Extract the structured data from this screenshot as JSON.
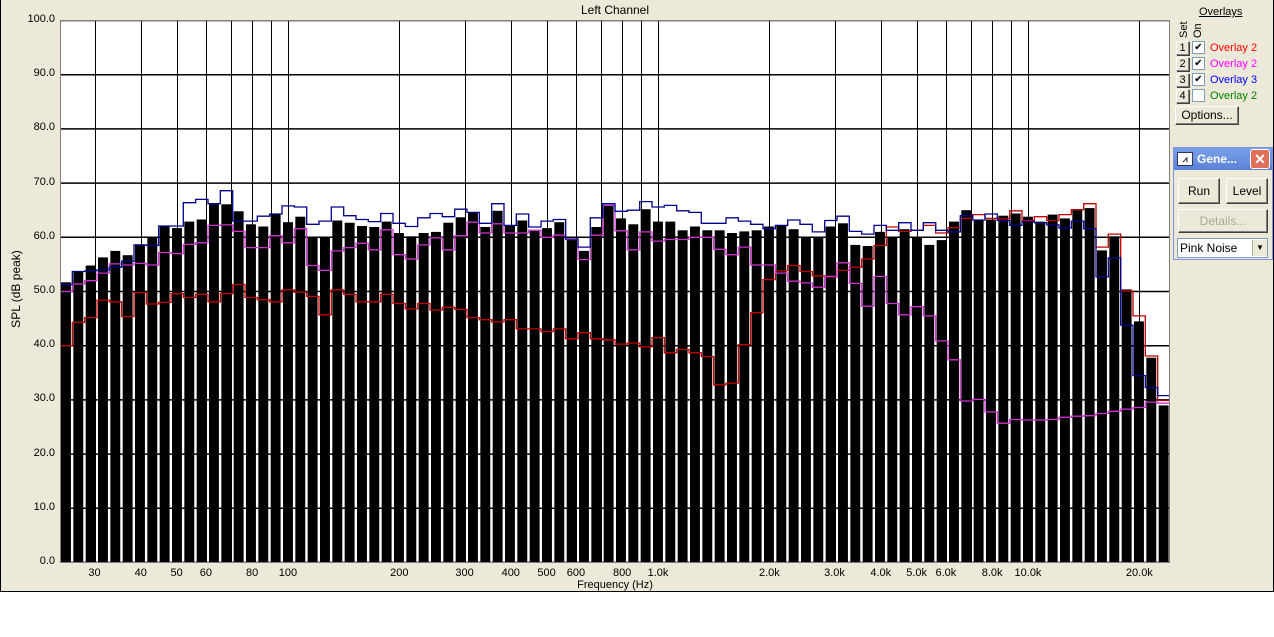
{
  "window": {
    "title": "Left Channel"
  },
  "overlays_panel": {
    "header": "Overlays",
    "col_set": "Set",
    "col_on": "On",
    "rows": [
      {
        "set": "1",
        "checked": true,
        "label": "Overlay 2",
        "color": "#ff0000"
      },
      {
        "set": "2",
        "checked": true,
        "label": "Overlay 2",
        "color": "#ff00ff"
      },
      {
        "set": "3",
        "checked": true,
        "label": "Overlay 3",
        "color": "#0000ff"
      },
      {
        "set": "4",
        "checked": false,
        "label": "Overlay 2",
        "color": "#008000"
      }
    ],
    "options_label": "Options..."
  },
  "generator": {
    "title": "Gene...",
    "run_label": "Run",
    "level_label": "Level",
    "details_label": "Details...",
    "signal": "Pink Noise"
  },
  "chart_data": {
    "type": "bar",
    "title": "Left Channel",
    "xlabel": "Frequency (Hz)",
    "ylabel": "SPL (dB peak)",
    "xscale": "log",
    "xlim": [
      24.2,
      24200
    ],
    "ylim": [
      0,
      100
    ],
    "grid": true,
    "yticks": [
      "0.0",
      "10.0",
      "20.0",
      "30.0",
      "40.0",
      "50.0",
      "60.0",
      "70.0",
      "80.0",
      "90.0",
      "100.0"
    ],
    "xticks": [
      {
        "value": 30,
        "label": "30"
      },
      {
        "value": 40,
        "label": "40"
      },
      {
        "value": 50,
        "label": "50"
      },
      {
        "value": 60,
        "label": "60"
      },
      {
        "value": 80,
        "label": "80"
      },
      {
        "value": 100,
        "label": "100"
      },
      {
        "value": 200,
        "label": "200"
      },
      {
        "value": 300,
        "label": "300"
      },
      {
        "value": 400,
        "label": "400"
      },
      {
        "value": 500,
        "label": "500"
      },
      {
        "value": 600,
        "label": "600"
      },
      {
        "value": 800,
        "label": "800"
      },
      {
        "value": 1000,
        "label": "1.0k"
      },
      {
        "value": 2000,
        "label": "2.0k"
      },
      {
        "value": 3000,
        "label": "3.0k"
      },
      {
        "value": 4000,
        "label": "4.0k"
      },
      {
        "value": 5000,
        "label": "5.0k"
      },
      {
        "value": 6000,
        "label": "6.0k"
      },
      {
        "value": 8000,
        "label": "8.0k"
      },
      {
        "value": 10000,
        "label": "10.0k"
      },
      {
        "value": 20000,
        "label": "20.0k"
      }
    ],
    "xgrid": [
      30,
      40,
      50,
      60,
      70,
      80,
      90,
      100,
      200,
      300,
      400,
      500,
      600,
      700,
      800,
      900,
      1000,
      2000,
      3000,
      4000,
      5000,
      6000,
      7000,
      8000,
      9000,
      10000,
      20000
    ],
    "bar_color": "#000000",
    "values": [
      51.6,
      53.6,
      54.7,
      56.2,
      57.4,
      56.6,
      58.6,
      59.9,
      61.9,
      61.6,
      62.8,
      63.2,
      66.0,
      66.0,
      64.7,
      62.3,
      61.9,
      64.2,
      62.7,
      63.7,
      59.9,
      59.9,
      63.0,
      62.6,
      62.0,
      61.8,
      62.8,
      60.7,
      60.1,
      60.7,
      60.9,
      62.6,
      63.6,
      64.5,
      61.8,
      64.8,
      62.0,
      63.0,
      61.3,
      61.6,
      62.7,
      59.6,
      57.4,
      61.8,
      65.9,
      63.4,
      62.3,
      65.1,
      62.8,
      62.8,
      61.2,
      61.9,
      61.2,
      61.2,
      60.7,
      61.0,
      61.2,
      61.9,
      62.1,
      61.4,
      59.9,
      59.9,
      61.9,
      62.5,
      58.5,
      58.3,
      60.9,
      59.9,
      61.4,
      59.9,
      58.5,
      59.4,
      62.8,
      64.9,
      63.2,
      63.2,
      63.9,
      64.3,
      63.7,
      62.8,
      64.1,
      63.4,
      64.9,
      65.3,
      57.5,
      60.1,
      50.3,
      44.4,
      37.7,
      28.9
    ],
    "series": [
      {
        "name": "Overlay 2",
        "color": "#c00000",
        "values": [
          39.9,
          44.2,
          45.1,
          48.3,
          48.0,
          45.3,
          49.7,
          47.6,
          47.9,
          49.5,
          48.8,
          49.4,
          48.0,
          49.5,
          51.2,
          48.8,
          48.4,
          48.0,
          50.2,
          49.8,
          49.0,
          45.6,
          50.2,
          49.4,
          48.0,
          48.0,
          49.4,
          47.7,
          46.7,
          47.7,
          46.5,
          47.0,
          46.6,
          45.1,
          44.7,
          44.3,
          44.7,
          43.0,
          43.0,
          42.5,
          43.0,
          41.2,
          42.3,
          41.2,
          41.0,
          40.2,
          40.4,
          39.7,
          41.4,
          38.6,
          39.2,
          38.6,
          37.9,
          32.7,
          33.0,
          40.1,
          46.0,
          52.1,
          53.7,
          54.7,
          53.6,
          52.8,
          52.6,
          53.8,
          54.4,
          55.9,
          58.4,
          61.8,
          61.0,
          61.2,
          62.1,
          60.7,
          61.7,
          63.4,
          64.1,
          63.4,
          63.3,
          64.8,
          63.0,
          63.7,
          63.0,
          64.1,
          65.0,
          66.1,
          58.1,
          60.5,
          50.0,
          45.4,
          38.0,
          29.8
        ]
      },
      {
        "name": "Overlay 2",
        "color": "#cc33cc",
        "values": [
          49.9,
          51.3,
          51.9,
          53.3,
          55.0,
          54.8,
          55.1,
          54.8,
          57.1,
          56.9,
          58.6,
          58.9,
          62.1,
          62.2,
          61.0,
          58.0,
          58.0,
          60.2,
          58.9,
          61.5,
          54.7,
          53.8,
          57.4,
          58.0,
          58.8,
          57.6,
          61.3,
          56.7,
          55.9,
          58.5,
          59.8,
          57.6,
          60.2,
          62.7,
          60.7,
          62.4,
          60.7,
          60.7,
          61.2,
          59.9,
          60.3,
          59.5,
          55.8,
          60.3,
          65.8,
          61.1,
          57.6,
          60.9,
          59.2,
          59.5,
          59.5,
          59.9,
          59.9,
          57.7,
          56.7,
          58.1,
          54.8,
          54.8,
          53.3,
          51.8,
          51.5,
          50.7,
          52.7,
          55.2,
          51.4,
          47.2,
          52.7,
          47.7,
          45.6,
          47.1,
          45.4,
          40.8,
          37.3,
          29.7,
          30.0,
          27.7,
          25.6,
          26.3,
          26.2,
          26.2,
          26.3,
          26.7,
          26.9,
          27.0,
          27.4,
          27.8,
          28.2,
          28.5,
          29.5,
          29.3
        ]
      },
      {
        "name": "Overlay 3",
        "color": "#00008b",
        "values": [
          51.2,
          53.6,
          53.7,
          53.9,
          54.4,
          55.5,
          58.5,
          58.4,
          62.0,
          62.0,
          66.3,
          66.9,
          66.1,
          68.5,
          62.9,
          62.9,
          63.8,
          64.2,
          65.7,
          65.5,
          62.3,
          62.9,
          65.5,
          63.9,
          63.2,
          62.8,
          64.3,
          62.5,
          61.9,
          63.5,
          64.3,
          63.7,
          65.1,
          64.5,
          62.5,
          66.1,
          62.1,
          64.2,
          61.8,
          62.9,
          63.2,
          59.6,
          58.1,
          63.5,
          66.1,
          64.7,
          64.9,
          66.5,
          65.5,
          65.8,
          64.8,
          64.5,
          62.5,
          62.5,
          63.5,
          62.9,
          62.3,
          61.5,
          62.1,
          63.1,
          62.3,
          60.9,
          63.0,
          63.8,
          61.0,
          60.5,
          62.1,
          61.2,
          62.6,
          61.2,
          62.6,
          61.2,
          60.9,
          63.9,
          63.1,
          64.2,
          63.0,
          62.1,
          62.8,
          62.6,
          62.2,
          61.6,
          62.9,
          61.5,
          52.6,
          56.1,
          43.7,
          34.4,
          32.2,
          30.7
        ]
      }
    ]
  }
}
